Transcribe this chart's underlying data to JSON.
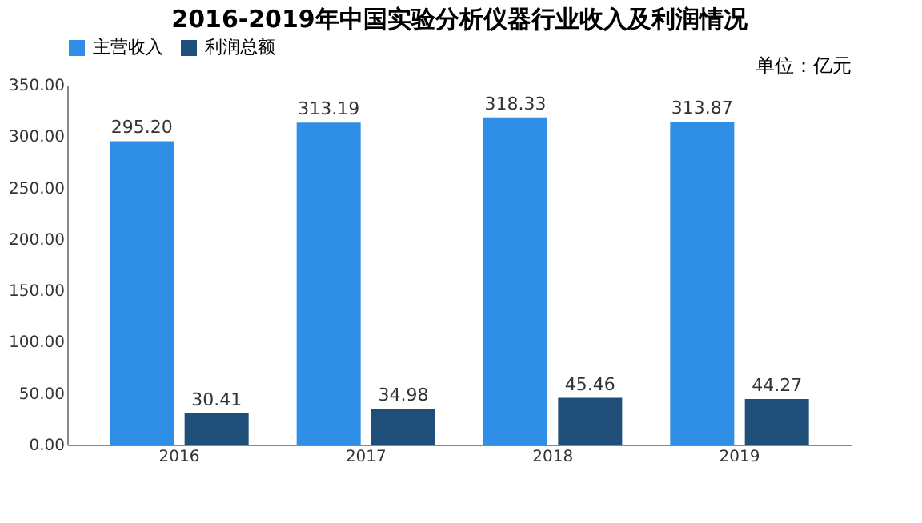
{
  "chart_data": {
    "type": "bar",
    "title": "2016-2019年中国实验分析仪器行业收入及利润情况",
    "categories": [
      "2016",
      "2017",
      "2018",
      "2019"
    ],
    "series": [
      {
        "name": "主营收入",
        "color": "#2f8ee5",
        "values": [
          295.2,
          313.19,
          318.33,
          313.87
        ],
        "value_labels": [
          "295.20",
          "313.19",
          "318.33",
          "313.87"
        ]
      },
      {
        "name": "利润总额",
        "color": "#1f4e79",
        "values": [
          30.41,
          34.98,
          45.46,
          44.27
        ],
        "value_labels": [
          "30.41",
          "34.98",
          "45.46",
          "44.27"
        ]
      }
    ],
    "ylim": [
      0,
      350
    ],
    "yticks": [
      {
        "value": 0,
        "label": "0.00"
      },
      {
        "value": 50,
        "label": "50.00"
      },
      {
        "value": 100,
        "label": "100.00"
      },
      {
        "value": 150,
        "label": "150.00"
      },
      {
        "value": 200,
        "label": "200.00"
      },
      {
        "value": 250,
        "label": "250.00"
      },
      {
        "value": 300,
        "label": "300.00"
      },
      {
        "value": 350,
        "label": "350.00"
      }
    ],
    "data_labels": true,
    "annotations": [
      "单位：亿元"
    ],
    "legend": "top",
    "grid": false
  }
}
